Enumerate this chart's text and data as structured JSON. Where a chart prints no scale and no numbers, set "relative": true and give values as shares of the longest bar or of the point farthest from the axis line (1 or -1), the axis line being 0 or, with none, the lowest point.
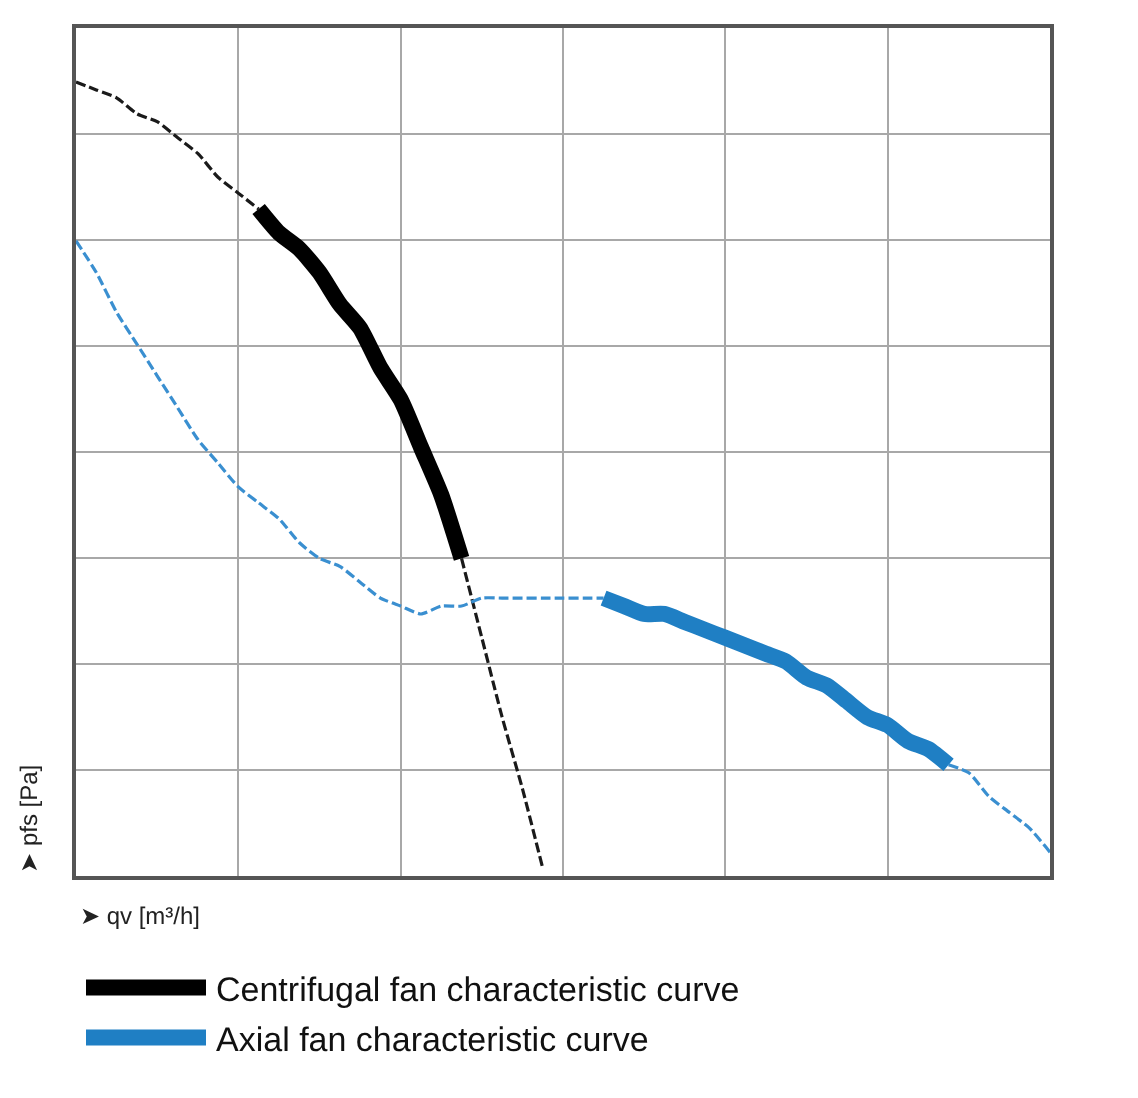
{
  "chart_data": {
    "type": "line",
    "relative": true,
    "xlabel": "➤ qv [m³/h]",
    "ylabel": "➤ pfs [Pa]",
    "categories": [
      null,
      null,
      null,
      null,
      null,
      null,
      null,
      null,
      null,
      null,
      null,
      null,
      null,
      null,
      null,
      null,
      null,
      null,
      null,
      null,
      null,
      null,
      null,
      null,
      null,
      null,
      null,
      null,
      null,
      null,
      null,
      null,
      null,
      null,
      null,
      null,
      null,
      null,
      null,
      null,
      null,
      null,
      null,
      null,
      null,
      null,
      null,
      null,
      null
    ],
    "grid": true,
    "legend": "bottom",
    "series": [
      {
        "color": "#1a1a1a",
        "line_style": "dashed",
        "values": [
          1.0,
          0.99,
          0.98,
          0.96,
          0.95,
          0.93,
          0.91,
          0.88,
          0.86,
          0.84,
          null,
          null,
          null,
          null,
          null,
          null,
          null,
          null,
          null,
          0.4,
          0.3,
          0.2,
          0.11,
          0.01,
          null,
          null,
          null,
          null,
          null,
          null,
          null,
          null,
          null,
          null,
          null,
          null,
          null,
          null,
          null,
          null,
          null,
          null,
          null,
          null,
          null,
          null,
          null,
          null,
          null
        ]
      },
      {
        "color": "#3a8fd0",
        "line_style": "dashed",
        "values": [
          0.8,
          0.76,
          0.71,
          0.67,
          0.63,
          0.59,
          0.55,
          0.52,
          0.49,
          0.47,
          0.45,
          0.42,
          0.4,
          0.39,
          0.37,
          0.35,
          0.34,
          0.33,
          0.34,
          0.34,
          0.35,
          0.35,
          0.35,
          0.35,
          0.35,
          0.35,
          0.35,
          null,
          null,
          null,
          null,
          null,
          null,
          null,
          null,
          null,
          null,
          null,
          null,
          null,
          null,
          null,
          null,
          0.14,
          0.13,
          0.1,
          0.08,
          0.06,
          0.03
        ]
      },
      {
        "name": "Centrifugal fan characteristic curve",
        "color": "#000000",
        "line_style": "solid",
        "values": [
          null,
          null,
          null,
          null,
          null,
          null,
          null,
          null,
          null,
          0.84,
          0.81,
          0.79,
          0.76,
          0.72,
          0.69,
          0.64,
          0.6,
          0.54,
          0.48,
          0.4,
          null,
          null,
          null,
          null,
          null,
          null,
          null,
          null,
          null,
          null,
          null,
          null,
          null,
          null,
          null,
          null,
          null,
          null,
          null,
          null,
          null,
          null,
          null,
          null,
          null,
          null,
          null,
          null,
          null
        ]
      },
      {
        "name": "Axial fan characteristic curve",
        "color": "#1f7fc4",
        "line_style": "solid",
        "values": [
          null,
          null,
          null,
          null,
          null,
          null,
          null,
          null,
          null,
          null,
          null,
          null,
          null,
          null,
          null,
          null,
          null,
          null,
          null,
          null,
          null,
          null,
          null,
          null,
          null,
          null,
          0.35,
          0.34,
          0.33,
          0.33,
          0.32,
          0.31,
          0.3,
          0.29,
          0.28,
          0.27,
          0.25,
          0.24,
          0.22,
          0.2,
          0.19,
          0.17,
          0.16,
          0.14,
          null,
          null,
          null,
          null,
          null
        ]
      }
    ]
  }
}
